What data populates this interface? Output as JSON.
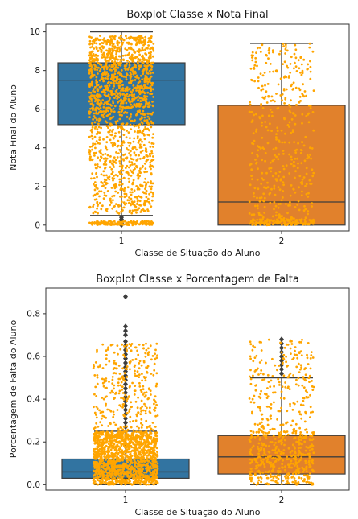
{
  "colors": {
    "class_1": "#3274a1",
    "class_2": "#e1812c",
    "jitter": "#ffa500",
    "whisker": "#3d3d3d",
    "outlier": "#3d3d3d"
  },
  "chart_data": [
    {
      "type": "box",
      "title": "Boxplot Classe x Nota Final",
      "xlabel": "Classe de Situação do Aluno",
      "ylabel": "Nota Final do Aluno",
      "categories": [
        "1",
        "2"
      ],
      "ylim": [
        -0.3,
        10.4
      ],
      "yticks": [
        0,
        2,
        4,
        6,
        8,
        10
      ],
      "ytick_labels": [
        "0",
        "2",
        "4",
        "6",
        "8",
        "10"
      ],
      "grid": false,
      "jitter_overlay": true,
      "boxes": [
        {
          "category": "1",
          "whislo": 0.5,
          "q1": 5.2,
          "median": 7.5,
          "q3": 8.4,
          "whishi": 10.0,
          "outliers": [
            0.0,
            0.05,
            0.1,
            0.15,
            0.2,
            0.3,
            0.4
          ]
        },
        {
          "category": "2",
          "whislo": 0.0,
          "q1": 0.0,
          "median": 1.2,
          "q3": 6.2,
          "whishi": 9.4,
          "outliers": []
        }
      ]
    },
    {
      "type": "box",
      "title": "Boxplot Classe x Porcentagem de Falta",
      "xlabel": "Classe de Situação do Aluno",
      "ylabel": "Porcentagem de Falta do Aluno",
      "categories": [
        "1",
        "2"
      ],
      "ylim": [
        -0.025,
        0.92
      ],
      "yticks": [
        0.0,
        0.2,
        0.4,
        0.6,
        0.8
      ],
      "ytick_labels": [
        "0.0",
        "0.2",
        "0.4",
        "0.6",
        "0.8"
      ],
      "grid": false,
      "jitter_overlay": true,
      "boxes": [
        {
          "category": "1",
          "whislo": 0.0,
          "q1": 0.03,
          "median": 0.06,
          "q3": 0.12,
          "whishi": 0.25,
          "outliers": [
            0.27,
            0.29,
            0.31,
            0.33,
            0.35,
            0.37,
            0.39,
            0.41,
            0.43,
            0.45,
            0.47,
            0.49,
            0.51,
            0.53,
            0.55,
            0.57,
            0.59,
            0.61,
            0.63,
            0.65,
            0.67,
            0.7,
            0.72,
            0.74,
            0.88
          ]
        },
        {
          "category": "2",
          "whislo": 0.0,
          "q1": 0.05,
          "median": 0.13,
          "q3": 0.23,
          "whishi": 0.5,
          "outliers": [
            0.52,
            0.54,
            0.56,
            0.58,
            0.6,
            0.62,
            0.64,
            0.66,
            0.68
          ]
        }
      ]
    }
  ]
}
